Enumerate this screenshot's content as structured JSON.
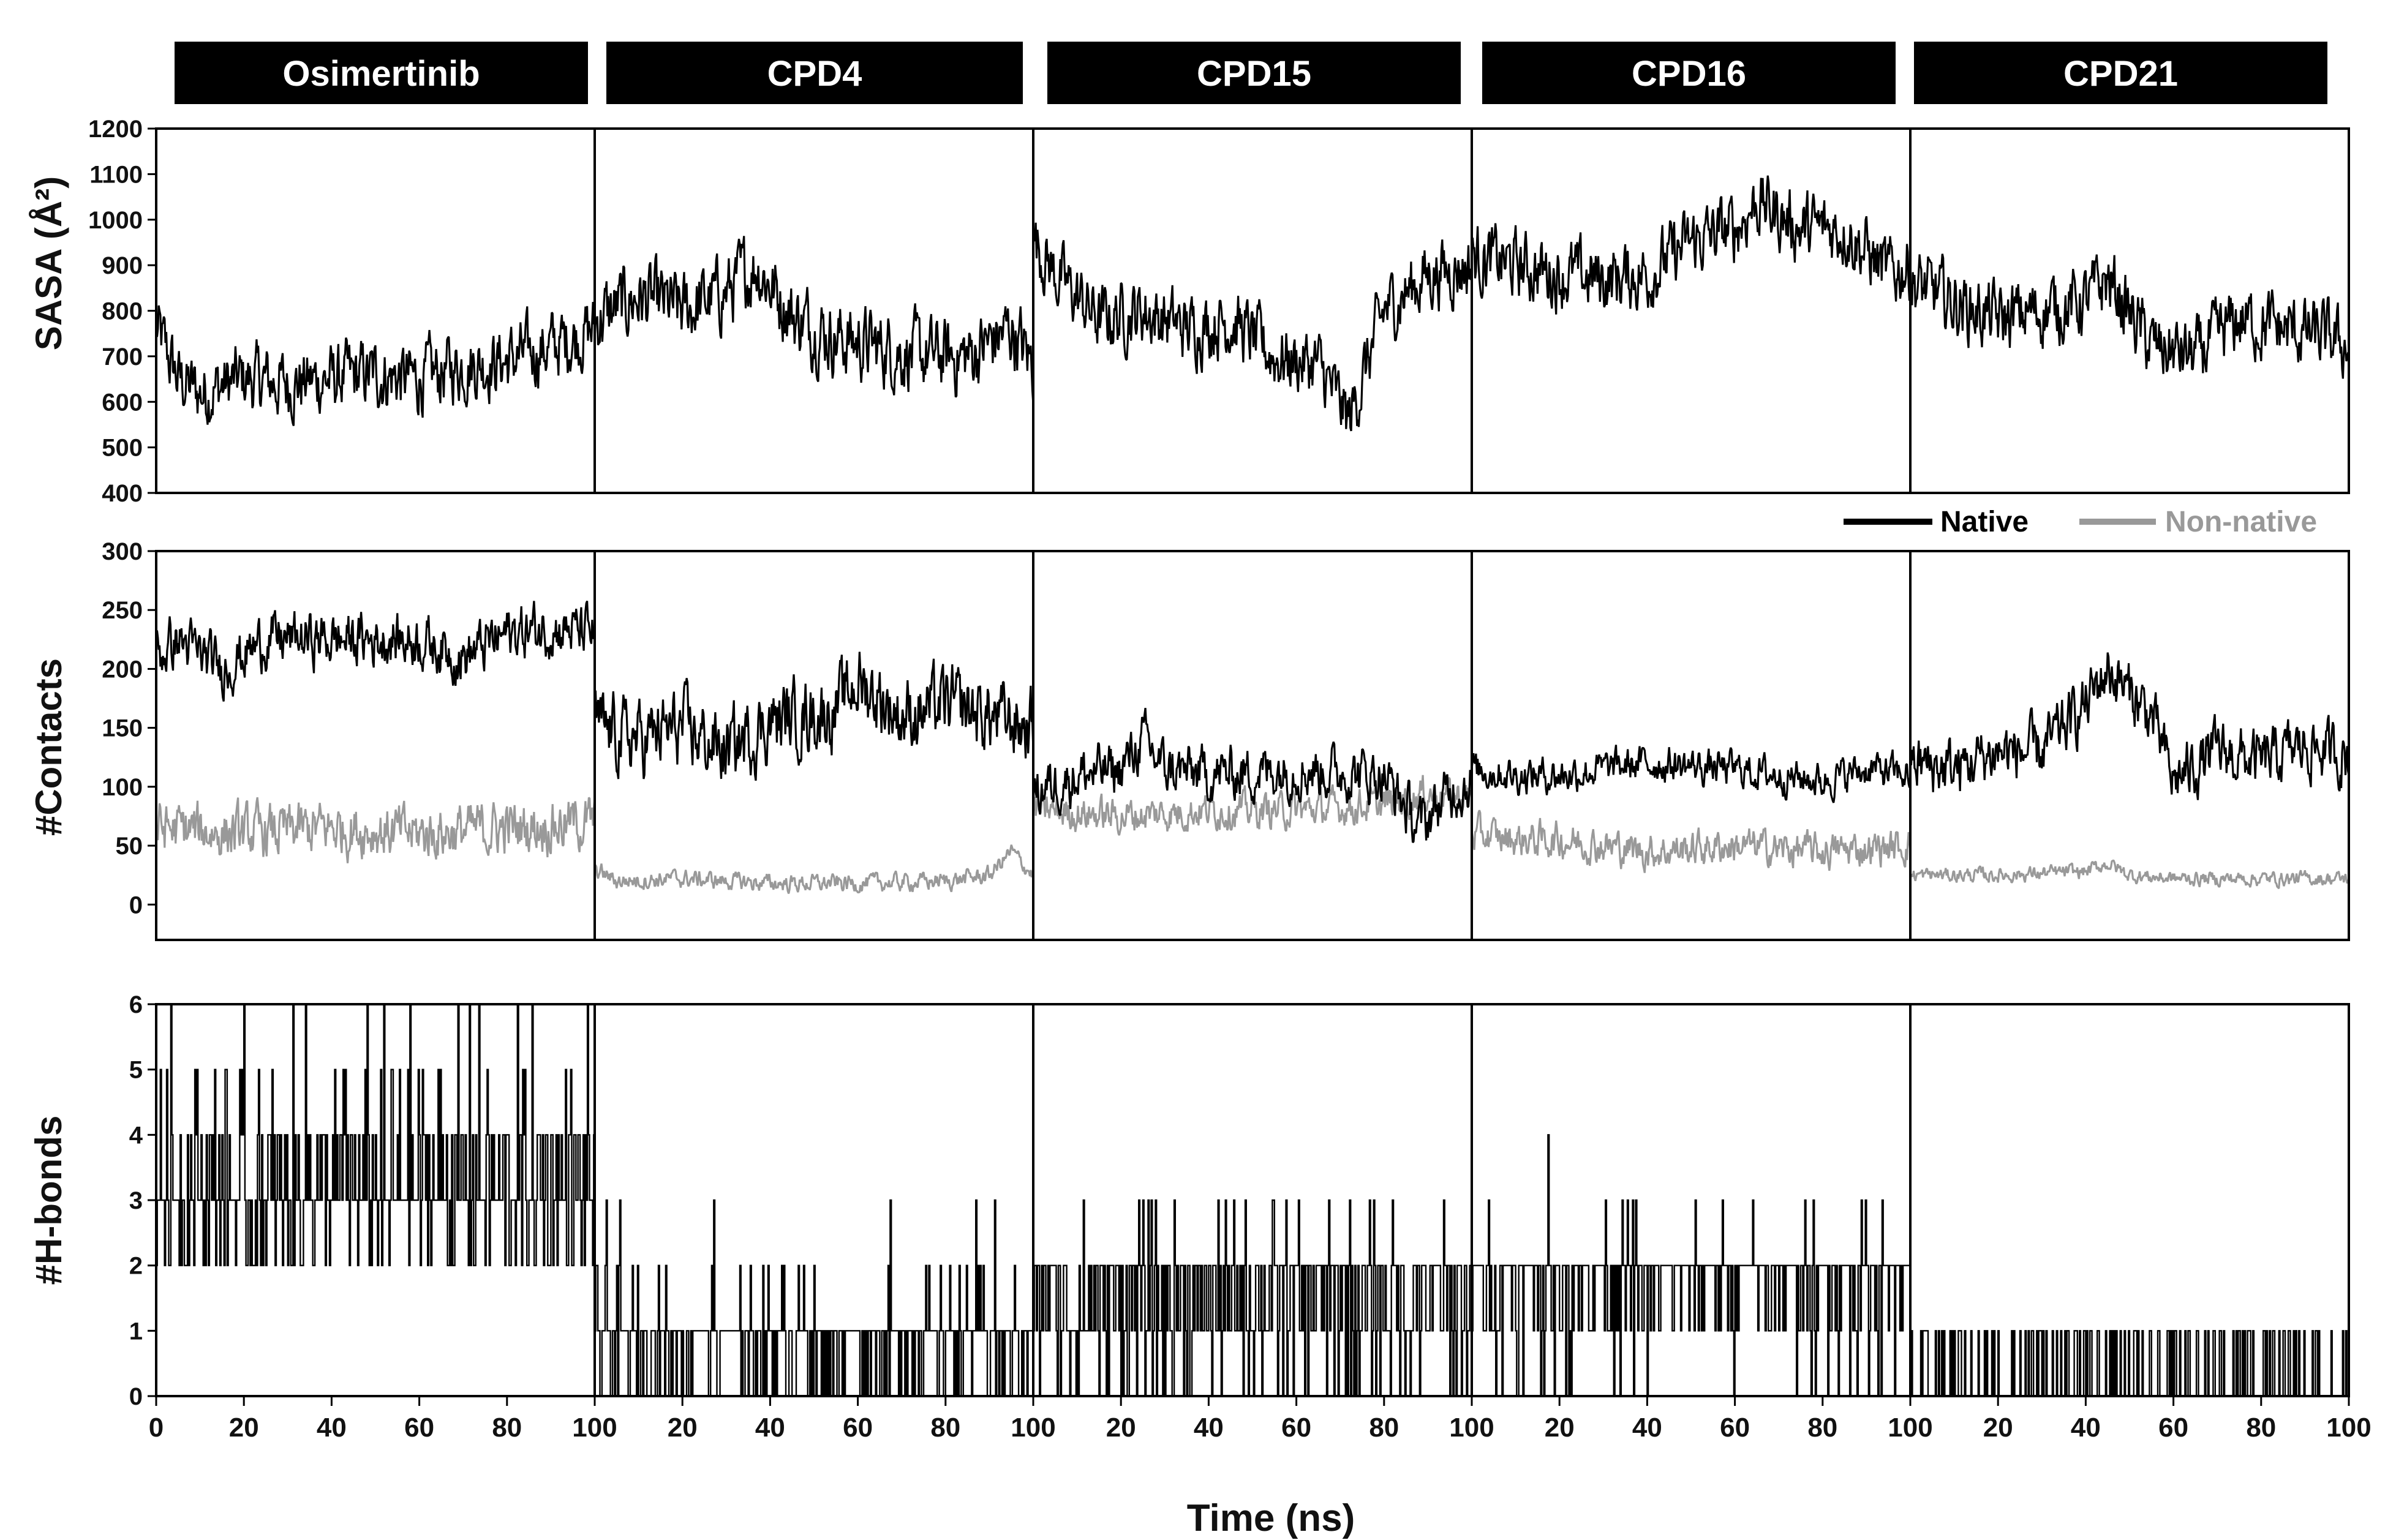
{
  "chart_data": {
    "type": "line",
    "compounds": [
      "Osimertinib",
      "CPD4",
      "CPD15",
      "CPD16",
      "CPD21"
    ],
    "legend": [
      {
        "name": "Native",
        "color": "#000000"
      },
      {
        "name": "Non-native",
        "color": "#999999"
      }
    ],
    "xlabel": "Time (ns)",
    "xlim": [
      0,
      100
    ],
    "xticks": [
      "0",
      "20",
      "40",
      "60",
      "80",
      "100"
    ],
    "panels": [
      {
        "id": "sasa",
        "ylabel": "SASA (Å²)",
        "ylim": [
          400,
          1200
        ],
        "yticks": [
          "400",
          "500",
          "600",
          "700",
          "800",
          "900",
          "1000",
          "1100",
          "1200"
        ],
        "series": [
          {
            "name": "SASA",
            "compounds": [
              {
                "compound": "Osimertinib",
                "t": [
                  0,
                  5,
                  10,
                  20,
                  30,
                  40,
                  50,
                  60,
                  70,
                  80,
                  90,
                  100
                ],
                "mean": [
                  760,
                  650,
                  620,
                  650,
                  640,
                  650,
                  660,
                  650,
                  680,
                  690,
                  720,
                  760
                ],
                "noise": 60,
                "color": "#000000"
              },
              {
                "compound": "CPD4",
                "t": [
                  0,
                  10,
                  20,
                  30,
                  37,
                  45,
                  55,
                  65,
                  75,
                  85,
                  95,
                  100
                ],
                "mean": [
                  780,
                  830,
                  800,
                  840,
                  900,
                  790,
                  740,
                  720,
                  700,
                  700,
                  760,
                  680
                ],
                "noise": 65,
                "color": "#000000"
              },
              {
                "compound": "CPD15",
                "t": [
                  0,
                  5,
                  15,
                  25,
                  35,
                  45,
                  55,
                  65,
                  72,
                  80,
                  90,
                  100
                ],
                "mean": [
                  960,
                  880,
                  780,
                  800,
                  760,
                  780,
                  700,
                  680,
                  560,
                  800,
                  880,
                  900
                ],
                "noise": 60,
                "color": "#000000"
              },
              {
                "compound": "CPD16",
                "t": [
                  0,
                  10,
                  20,
                  30,
                  40,
                  50,
                  60,
                  65,
                  75,
                  85,
                  95,
                  100
                ],
                "mean": [
                  920,
                  900,
                  880,
                  870,
                  880,
                  950,
                  980,
                  1040,
                  980,
                  980,
                  880,
                  900
                ],
                "noise": 60,
                "color": "#000000"
              },
              {
                "compound": "CPD21",
                "t": [
                  0,
                  10,
                  20,
                  30,
                  40,
                  45,
                  55,
                  65,
                  75,
                  85,
                  95,
                  100
                ],
                "mean": [
                  860,
                  820,
                  780,
                  800,
                  820,
                  870,
                  720,
                  700,
                  780,
                  760,
                  740,
                  720
                ],
                "noise": 60,
                "color": "#000000"
              }
            ]
          }
        ]
      },
      {
        "id": "contacts",
        "ylabel": "#Contacts",
        "ylim": [
          -30,
          300
        ],
        "yticks": [
          "0",
          "50",
          "100",
          "150",
          "200",
          "250",
          "300"
        ],
        "series": [
          {
            "name": "Native",
            "compounds": [
              {
                "compound": "Osimertinib",
                "t": [
                  0,
                  5,
                  15,
                  25,
                  40,
                  60,
                  70,
                  80,
                  90,
                  100
                ],
                "mean": [
                  210,
                  225,
                  200,
                  225,
                  225,
                  225,
                  210,
                  230,
                  235,
                  230
                ],
                "noise": 18,
                "color": "#000000"
              },
              {
                "compound": "CPD4",
                "t": [
                  0,
                  10,
                  20,
                  30,
                  40,
                  55,
                  60,
                  70,
                  80,
                  90,
                  100
                ],
                "mean": [
                  150,
                  140,
                  150,
                  130,
                  155,
                  165,
                  190,
                  160,
                  170,
                  160,
                  150
                ],
                "noise": 25,
                "color": "#000000"
              },
              {
                "compound": "CPD15",
                "t": [
                  0,
                  10,
                  20,
                  25,
                  30,
                  40,
                  60,
                  80,
                  88,
                  95,
                  100
                ],
                "mean": [
                  95,
                  110,
                  115,
                  140,
                  115,
                  110,
                  115,
                  110,
                  65,
                  95,
                  105
                ],
                "noise": 18,
                "color": "#000000"
              },
              {
                "compound": "CPD16",
                "t": [
                  0,
                  10,
                  20,
                  40,
                  60,
                  70,
                  80,
                  90,
                  100
                ],
                "mean": [
                  115,
                  110,
                  110,
                  120,
                  115,
                  110,
                  105,
                  115,
                  110
                ],
                "noise": 12,
                "color": "#000000"
              },
              {
                "compound": "CPD21",
                "t": [
                  0,
                  10,
                  20,
                  30,
                  40,
                  45,
                  55,
                  60,
                  70,
                  80,
                  90,
                  100
                ],
                "mean": [
                  120,
                  115,
                  130,
                  130,
                  170,
                  200,
                  160,
                  105,
                  130,
                  120,
                  135,
                  125
                ],
                "noise": 20,
                "color": "#000000"
              }
            ]
          },
          {
            "name": "Non-native",
            "compounds": [
              {
                "compound": "Osimertinib",
                "t": [
                  0,
                  20,
                  40,
                  60,
                  80,
                  100
                ],
                "mean": [
                  65,
                  60,
                  65,
                  60,
                  65,
                  70
                ],
                "noise": 18,
                "color": "#999999"
              },
              {
                "compound": "CPD4",
                "t": [
                  0,
                  5,
                  20,
                  40,
                  60,
                  80,
                  90,
                  95,
                  100
                ],
                "mean": [
                  30,
                  20,
                  22,
                  18,
                  18,
                  20,
                  25,
                  45,
                  25
                ],
                "noise": 6,
                "color": "#999999"
              },
              {
                "compound": "CPD15",
                "t": [
                  0,
                  20,
                  40,
                  60,
                  80,
                  90,
                  100
                ],
                "mean": [
                  80,
                  75,
                  80,
                  80,
                  85,
                  95,
                  90
                ],
                "noise": 12,
                "color": "#999999"
              },
              {
                "compound": "CPD16",
                "t": [
                  0,
                  10,
                  20,
                  40,
                  60,
                  80,
                  100
                ],
                "mean": [
                  60,
                  55,
                  55,
                  45,
                  50,
                  45,
                  50
                ],
                "noise": 12,
                "color": "#999999"
              },
              {
                "compound": "CPD21",
                "t": [
                  0,
                  20,
                  40,
                  45,
                  50,
                  60,
                  80,
                  100
                ],
                "mean": [
                  25,
                  25,
                  28,
                  35,
                  25,
                  22,
                  22,
                  22
                ],
                "noise": 5,
                "color": "#999999"
              }
            ]
          }
        ]
      },
      {
        "id": "hbonds",
        "ylabel": "#H-bonds",
        "ylim": [
          0,
          6
        ],
        "yticks": [
          "0",
          "1",
          "2",
          "3",
          "4",
          "5",
          "6"
        ],
        "step_series": [
          {
            "compound": "Osimertinib",
            "levels": [
              [
                2,
                0.2
              ],
              [
                3,
                0.45
              ],
              [
                4,
                0.25
              ],
              [
                5,
                0.08
              ],
              [
                6,
                0.02
              ]
            ]
          },
          {
            "compound": "CPD4",
            "levels": [
              [
                0,
                0.25
              ],
              [
                1,
                0.68
              ],
              [
                2,
                0.06
              ],
              [
                3,
                0.01
              ]
            ]
          },
          {
            "compound": "CPD15",
            "levels": [
              [
                0,
                0.15
              ],
              [
                1,
                0.35
              ],
              [
                2,
                0.45
              ],
              [
                3,
                0.05
              ]
            ]
          },
          {
            "compound": "CPD16",
            "levels": [
              [
                0,
                0.04
              ],
              [
                1,
                0.24
              ],
              [
                2,
                0.68
              ],
              [
                3,
                0.03
              ],
              [
                4,
                0.01
              ]
            ]
          },
          {
            "compound": "CPD21",
            "levels": [
              [
                0,
                0.7
              ],
              [
                1,
                0.3
              ]
            ]
          }
        ]
      }
    ]
  }
}
